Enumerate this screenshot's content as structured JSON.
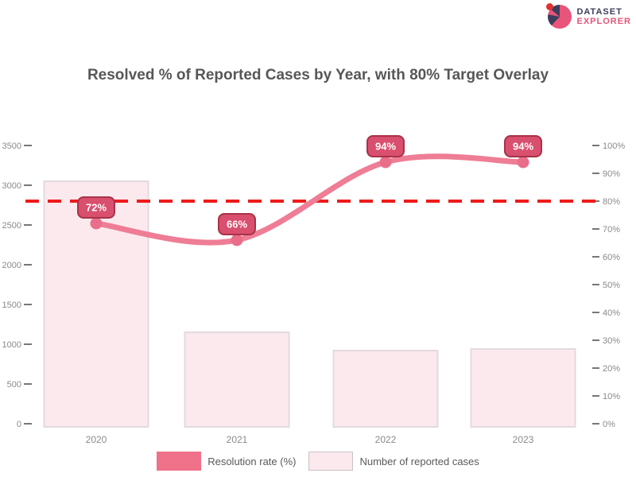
{
  "logo": {
    "line1": "DATASET",
    "line2": "EXPLORER",
    "icon": "pie-chart-logo-icon",
    "colors": {
      "line1": "#3d3d5c",
      "line2": "#e8547a",
      "dot": "#e03131"
    }
  },
  "title": "Resolved % of Reported Cases by Year, with 80% Target Overlay",
  "legend": [
    {
      "label": "Resolution rate (%)",
      "swatch": "#f0718a",
      "border": "#f0718a"
    },
    {
      "label": "Number of reported cases",
      "swatch": "#fbe9ee",
      "border": "#c9c2c5"
    }
  ],
  "chart_data": {
    "type": "bar+line combo",
    "categories": [
      "2020",
      "2021",
      "2022",
      "2023"
    ],
    "series": [
      {
        "name": "Number of reported cases",
        "type": "bar",
        "axis": "left",
        "values": [
          3050,
          1150,
          920,
          940
        ],
        "fill": "#fbe9ee",
        "stroke": "#e3dadd"
      },
      {
        "name": "Resolution rate (%)",
        "type": "line",
        "axis": "right",
        "values": [
          72,
          66,
          94,
          94
        ],
        "labels": [
          "72%",
          "66%",
          "94%",
          "94%"
        ],
        "line_color": "#ee7d95",
        "marker_color": "#e96e89",
        "label_box_fill": "#d94f6e",
        "label_box_stroke": "#a83249",
        "label_text_color": "#ffffff"
      }
    ],
    "target_line": {
      "value": 80,
      "axis": "right",
      "style": "dashed",
      "color": "#ee1b1b"
    },
    "left_axis": {
      "max": 3500,
      "ticks_top_to_bottom": [
        "3500",
        "3000",
        "2500",
        "2000",
        "1500",
        "1000",
        "500",
        "0"
      ]
    },
    "right_axis": {
      "max": 100,
      "ticks_top_to_bottom": [
        "100%",
        "90%",
        "80%",
        "70%",
        "60%",
        "50%",
        "40%",
        "30%",
        "20%",
        "10%",
        "0%"
      ]
    },
    "grid": "off",
    "legend_position": "bottom",
    "tick_color": "#777777",
    "tick_label_color": "#8a8a8a",
    "category_label_color": "#8a8a8a"
  }
}
